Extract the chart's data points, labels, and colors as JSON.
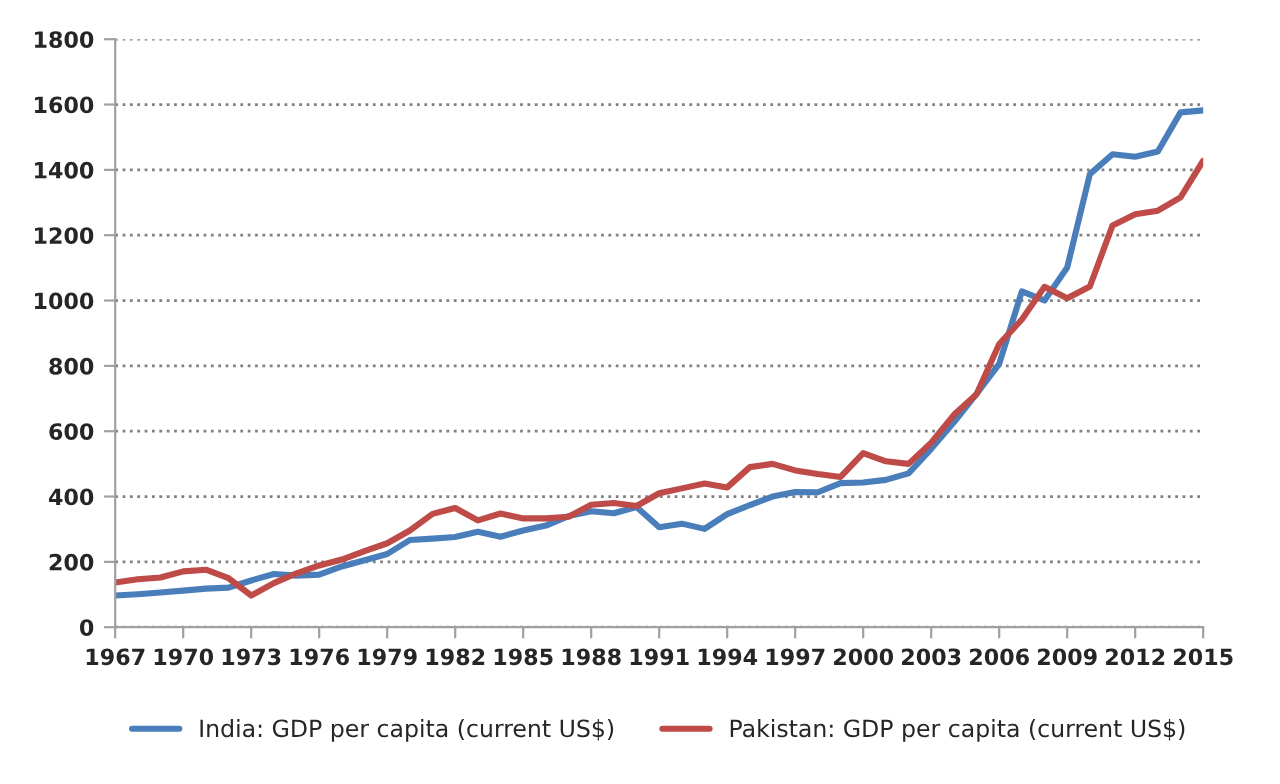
{
  "chart_data": {
    "type": "line",
    "x": [
      1967,
      1968,
      1969,
      1970,
      1971,
      1972,
      1973,
      1974,
      1975,
      1976,
      1977,
      1978,
      1979,
      1980,
      1981,
      1982,
      1983,
      1984,
      1985,
      1986,
      1987,
      1988,
      1989,
      1990,
      1991,
      1992,
      1993,
      1994,
      1995,
      1996,
      1997,
      1998,
      1999,
      2000,
      2001,
      2002,
      2003,
      2004,
      2005,
      2006,
      2007,
      2008,
      2009,
      2010,
      2011,
      2012,
      2013,
      2014,
      2015
    ],
    "series": [
      {
        "name": "India: GDP per capita (current US$)",
        "color": "#4a7ebb",
        "values": [
          97,
          101,
          106,
          112,
          118,
          121,
          143,
          163,
          158,
          161,
          186,
          205,
          224,
          267,
          271,
          276,
          292,
          277,
          296,
          311,
          340,
          355,
          349,
          368,
          306,
          317,
          301,
          346,
          374,
          400,
          414,
          413,
          441,
          443,
          451,
          471,
          546,
          627,
          714,
          806,
          1028,
          1000,
          1101,
          1387,
          1448,
          1440,
          1456,
          1576,
          1582
        ]
      },
      {
        "name": "Pakistan: GDP per capita (current US$)",
        "color": "#be4b48",
        "values": [
          137,
          147,
          152,
          171,
          176,
          150,
          97,
          135,
          165,
          189,
          207,
          233,
          257,
          296,
          347,
          365,
          327,
          348,
          333,
          333,
          338,
          375,
          380,
          371,
          410,
          425,
          440,
          428,
          490,
          500,
          480,
          469,
          460,
          533,
          508,
          500,
          565,
          650,
          713,
          867,
          942,
          1042,
          1007,
          1043,
          1230,
          1264,
          1275,
          1316,
          1428
        ]
      }
    ],
    "xlim": [
      1967,
      2015
    ],
    "xticks": [
      1967,
      1970,
      1973,
      1976,
      1979,
      1982,
      1985,
      1988,
      1991,
      1994,
      1997,
      2000,
      2003,
      2006,
      2009,
      2012,
      2015
    ],
    "ylim": [
      0,
      1800
    ],
    "yticks": [
      0,
      200,
      400,
      600,
      800,
      1000,
      1200,
      1400,
      1600,
      1800
    ],
    "grid": "y",
    "legend": "bottom",
    "marker": "none",
    "line_style": "solid"
  }
}
